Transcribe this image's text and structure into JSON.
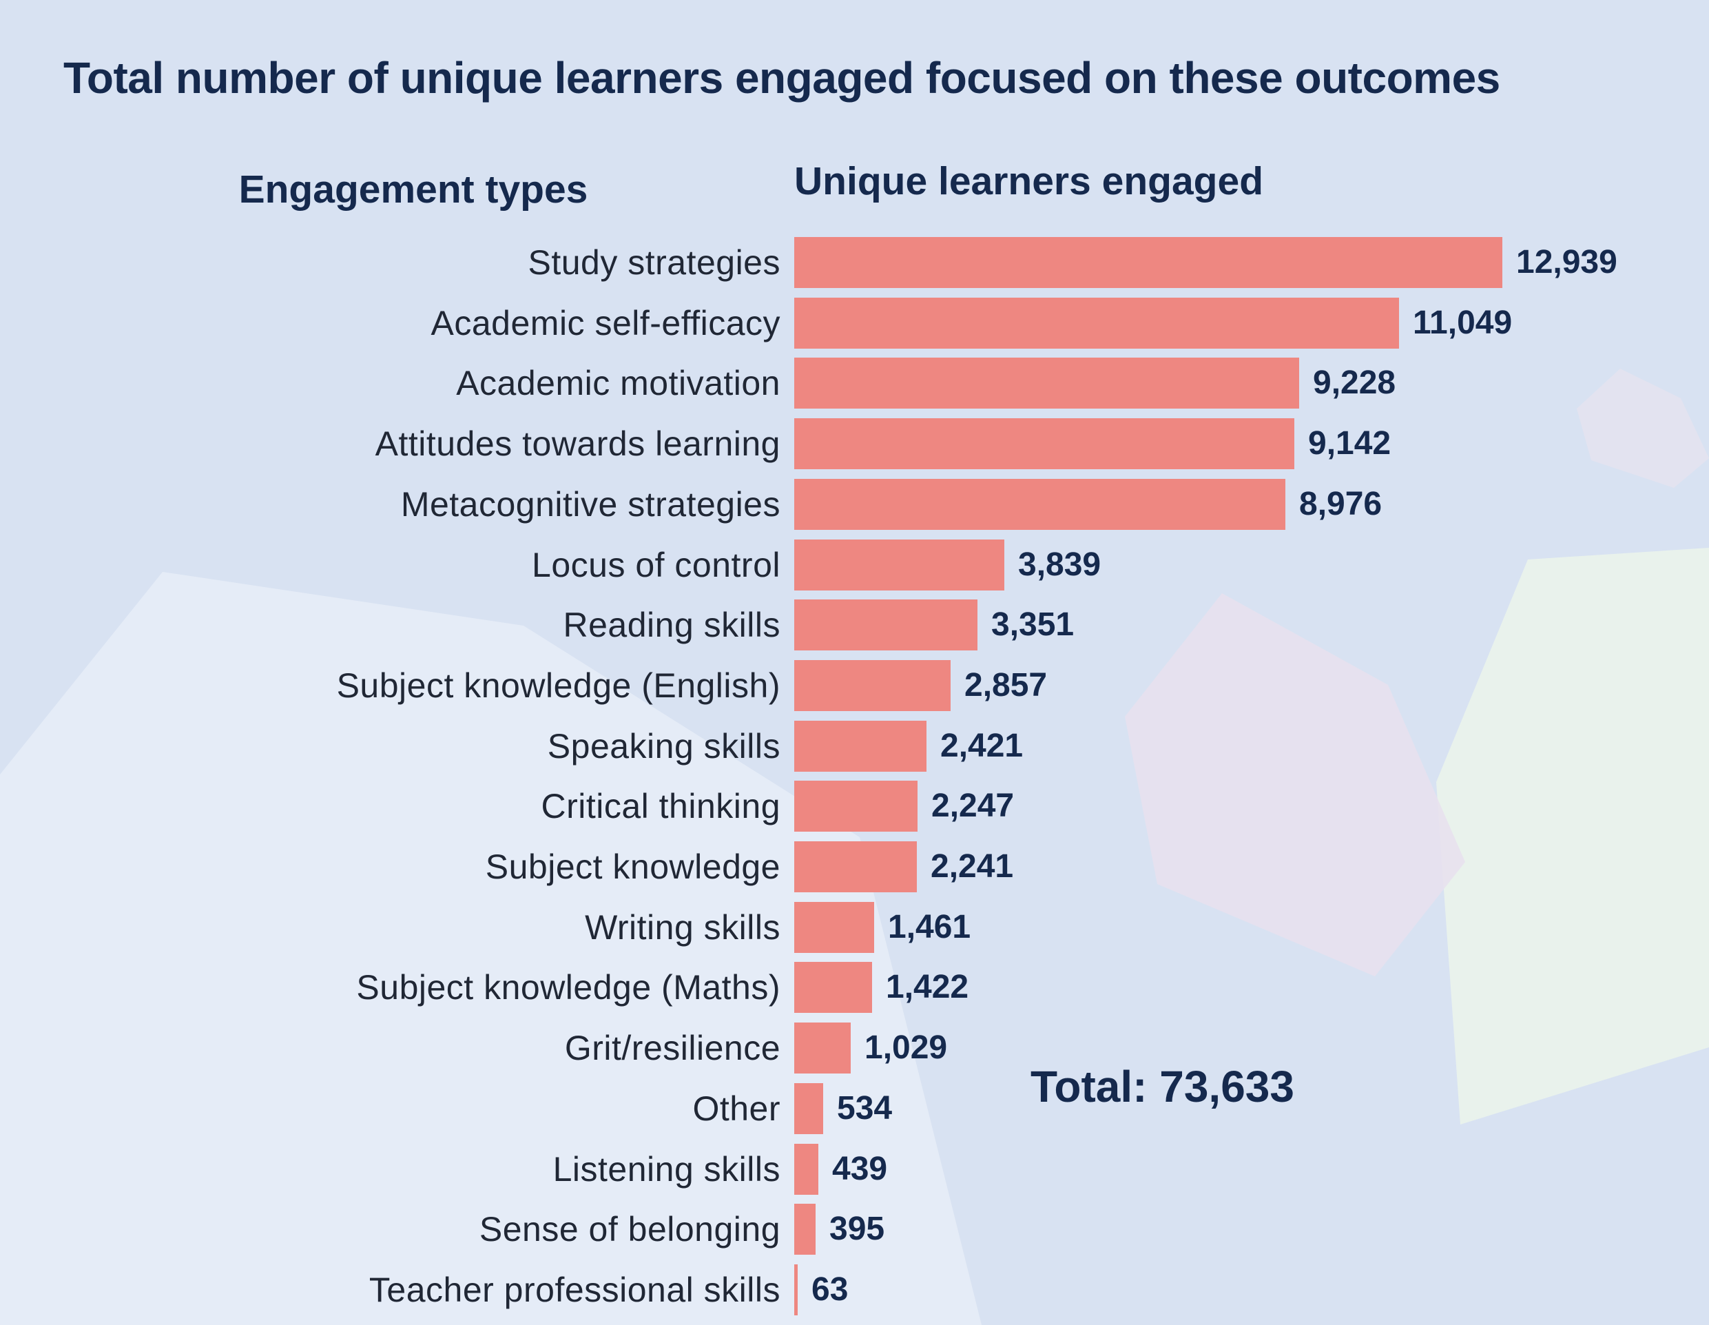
{
  "title": "Total number of unique learners engaged focused on these outcomes",
  "columns": {
    "left": "Engagement types",
    "right": "Unique learners engaged"
  },
  "total_label": "Total: 73,633",
  "chart_data": {
    "type": "bar",
    "orientation": "horizontal",
    "title": "Total number of unique learners engaged focused on these outcomes",
    "categories_label": "Engagement types",
    "xlabel": "Unique learners engaged",
    "categories": [
      "Study strategies",
      "Academic self-efficacy",
      "Academic motivation",
      "Attitudes towards learning",
      "Metacognitive strategies",
      "Locus of control",
      "Reading skills",
      "Subject knowledge (English)",
      "Speaking skills",
      "Critical thinking",
      "Subject knowledge",
      "Writing skills",
      "Subject knowledge (Maths)",
      "Grit/resilience",
      "Other",
      "Listening skills",
      "Sense of belonging",
      "Teacher professional skills"
    ],
    "values": [
      12939,
      11049,
      9228,
      9142,
      8976,
      3839,
      3351,
      2857,
      2421,
      2247,
      2241,
      1461,
      1422,
      1029,
      534,
      439,
      395,
      63
    ],
    "value_labels": [
      "12,939",
      "11,049",
      "9,228",
      "9,142",
      "8,976",
      "3,839",
      "3,351",
      "2,857",
      "2,421",
      "2,247",
      "2,241",
      "1,461",
      "1,422",
      "1,029",
      "534",
      "439",
      "395",
      "63"
    ],
    "total": 73633,
    "max_value": 12939,
    "xlim": [
      0,
      12939
    ],
    "grid": false,
    "legend_position": "none",
    "bar_color": "#ee8781",
    "value_text_color": "#15294d",
    "label_text_color": "#202735",
    "background_color": "#d8e2f2"
  }
}
